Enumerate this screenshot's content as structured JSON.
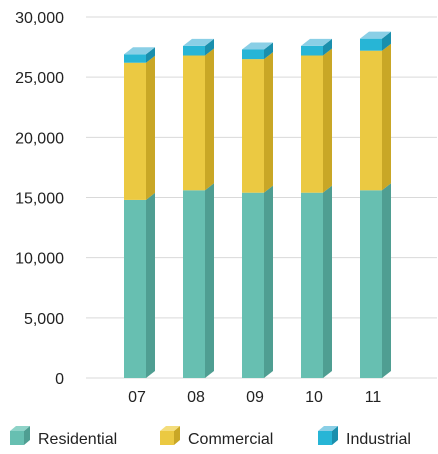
{
  "chart_data": {
    "type": "bar",
    "stacked": true,
    "style": "3d",
    "categories": [
      "07",
      "08",
      "09",
      "10",
      "11"
    ],
    "series": [
      {
        "name": "Residential",
        "values": [
          14800,
          15600,
          15400,
          15400,
          15600
        ],
        "color": "#67BFB1",
        "side_color": "#4F9E92",
        "top_color": "#8FD3C8"
      },
      {
        "name": "Commercial",
        "values": [
          11400,
          11200,
          11100,
          11400,
          11600
        ],
        "color": "#EBC942",
        "side_color": "#C9A726",
        "top_color": "#F4DD7C"
      },
      {
        "name": "Industrial",
        "values": [
          700,
          800,
          800,
          800,
          1000
        ],
        "color": "#27B5D6",
        "side_color": "#1A8FAD",
        "top_color": "#8ACFE6"
      }
    ],
    "title": "",
    "xlabel": "",
    "ylabel": "",
    "ylim": [
      0,
      30000
    ],
    "yticks": [
      0,
      5000,
      10000,
      15000,
      20000,
      25000,
      30000
    ],
    "ytick_labels": [
      "0",
      "5,000",
      "10,000",
      "15,000",
      "20,000",
      "25,000",
      "30,000"
    ],
    "grid": true,
    "grid_color": "#D9D9D9",
    "legend_position": "bottom"
  }
}
